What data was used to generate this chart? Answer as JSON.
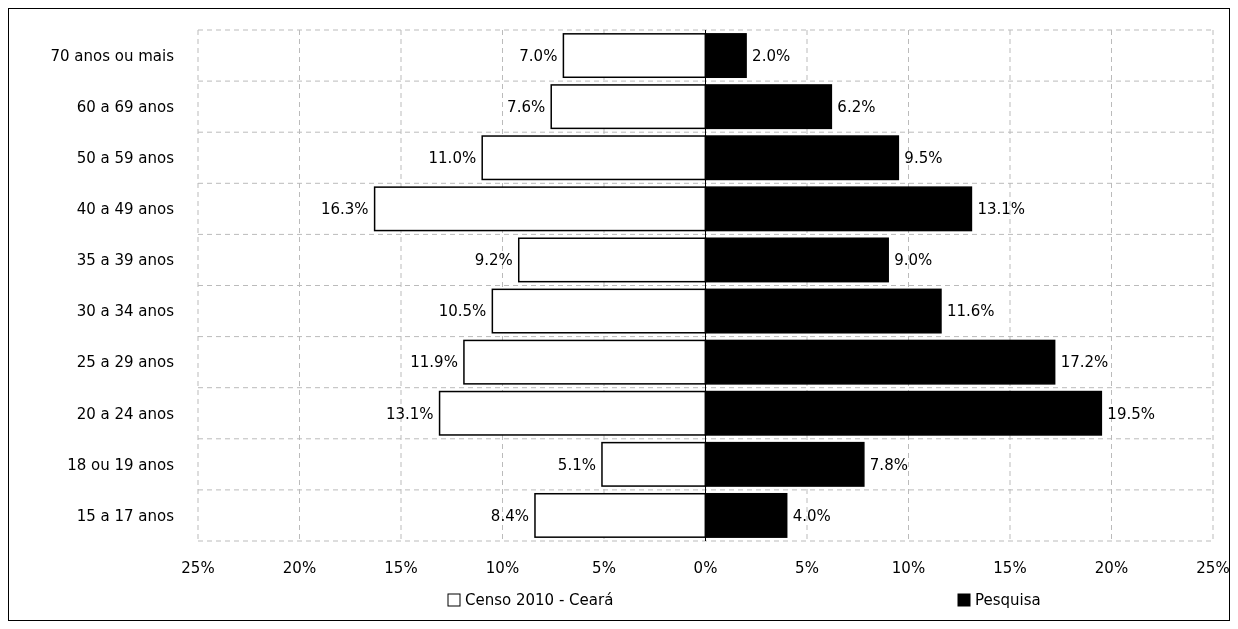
{
  "chart_data": {
    "type": "bar",
    "orientation": "horizontal",
    "categories": [
      "70 anos ou mais",
      "60 a 69 anos",
      "50 a 59 anos",
      "40 a 49 anos",
      "35 a 39 anos",
      "30 a 34 anos",
      "25 a 29 anos",
      "20 a 24 anos",
      "18 ou 19 anos",
      "15 a 17 anos"
    ],
    "series": [
      {
        "name": "Censo 2010 - Ceará",
        "color": "#ffffff",
        "base": [
          -7.0,
          -7.6,
          -11.0,
          -16.3,
          -9.2,
          -10.5,
          -11.9,
          -13.1,
          -5.1,
          -8.4
        ],
        "values": [
          7.0,
          7.6,
          11.0,
          16.3,
          9.2,
          10.5,
          11.9,
          13.1,
          5.1,
          8.4
        ],
        "value_labels": [
          "7.0%",
          "7.6%",
          "11.0%",
          "16.3%",
          "9.2%",
          "10.5%",
          "11.9%",
          "13.1%",
          "5.1%",
          "8.4%"
        ]
      },
      {
        "name": "Pesquisa",
        "color": "#000000",
        "values": [
          2.0,
          6.2,
          9.5,
          13.1,
          9.0,
          11.6,
          17.2,
          19.5,
          7.8,
          4.0
        ],
        "value_labels": [
          "2.0%",
          "6.2%",
          "9.5%",
          "13.1%",
          "9.0%",
          "11.6%",
          "17.2%",
          "19.5%",
          "7.8%",
          "4.0%"
        ]
      }
    ],
    "xlim": [
      -25,
      25
    ],
    "xticks": [
      {
        "value": -25,
        "label": "25%"
      },
      {
        "value": -20,
        "label": "20%"
      },
      {
        "value": -15,
        "label": "15%"
      },
      {
        "value": -10,
        "label": "10%"
      },
      {
        "value": -5,
        "label": "5%"
      },
      {
        "value": 0,
        "label": "0%"
      },
      {
        "value": 5,
        "label": "5%"
      },
      {
        "value": 10,
        "label": "10%"
      },
      {
        "value": 15,
        "label": "15%"
      },
      {
        "value": 20,
        "label": "20%"
      },
      {
        "value": 25,
        "label": "25%"
      }
    ],
    "grid": true,
    "legend": "bottom"
  }
}
